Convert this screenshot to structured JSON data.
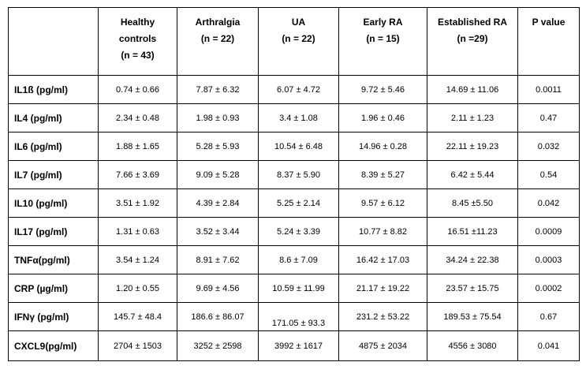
{
  "table": {
    "headers": [
      {
        "lines": []
      },
      {
        "lines": [
          "Healthy",
          "controls",
          "(n = 43)"
        ]
      },
      {
        "lines": [
          "Arthralgia",
          "(n = 22)"
        ]
      },
      {
        "lines": [
          "UA",
          "(n = 22)"
        ]
      },
      {
        "lines": [
          "Early RA",
          "(n = 15)"
        ]
      },
      {
        "lines": [
          "Established RA",
          "(n =29)"
        ]
      },
      {
        "lines": [
          "P value"
        ]
      }
    ],
    "rows": [
      {
        "label": "IL1ß (pg/ml)",
        "values": [
          "0.74 ± 0.66",
          "7.87 ± 6.32",
          "6.07 ± 4.72",
          "9.72 ± 5.46",
          "14.69 ± 11.06",
          "0.0011"
        ]
      },
      {
        "label": "IL4 (pg/ml)",
        "values": [
          "2.34 ± 0.48",
          "1.98 ± 0.93",
          "3.4 ± 1.08",
          "1.96 ± 0.46",
          "2.11 ± 1.23",
          "0.47"
        ]
      },
      {
        "label": "IL6 (pg/ml)",
        "values": [
          "1.88 ± 1.65",
          "5.28 ± 5.93",
          "10.54 ± 6.48",
          "14.96 ± 0.28",
          "22.11 ± 19.23",
          "0.032"
        ]
      },
      {
        "label": "IL7 (pg/ml)",
        "values": [
          "7.66 ± 3.69",
          "9.09 ± 5.28",
          "8.37 ± 5.90",
          "8.39 ± 5.27",
          "6.42 ± 5.44",
          "0.54"
        ]
      },
      {
        "label": "IL10 (pg/ml)",
        "values": [
          "3.51 ± 1.92",
          "4.39 ± 2.84",
          "5.25 ± 2.14",
          "9.57 ± 6.12",
          "8.45 ±5.50",
          "0.042"
        ]
      },
      {
        "label": "IL17 (pg/ml)",
        "values": [
          "1.31 ± 0.63",
          "3.52 ± 3.44",
          "5.24 ± 3.39",
          "10.77 ± 8.82",
          "16.51 ±11.23",
          "0.0009"
        ]
      },
      {
        "label": "TNFα(pg/ml)",
        "values": [
          "3.54 ± 1.24",
          "8.91 ± 7.62",
          "8.6 ± 7.09",
          "16.42 ± 17.03",
          "34.24 ± 22.38",
          "0.0003"
        ]
      },
      {
        "label": "CRP (µg/ml)",
        "values": [
          "1.20 ± 0.55",
          "9.69 ± 4.56",
          "10.59 ± 11.99",
          "21.17 ± 19.22",
          "23.57 ± 15.75",
          "0.0002"
        ]
      },
      {
        "label": "IFNγ (pg/ml)",
        "values": [
          "145.7 ± 48.4",
          "186.6 ± 86.07",
          "171.05 ± 93.3",
          "231.2 ± 53.22",
          "189.53 ± 75.54",
          "0.67"
        ]
      },
      {
        "label": "CXCL9(pg/ml)",
        "values": [
          "2704 ± 1503",
          "3252 ± 2598",
          "3992 ± 1617",
          "4875 ± 2034",
          "4556 ± 3080",
          "0.041"
        ]
      }
    ]
  }
}
